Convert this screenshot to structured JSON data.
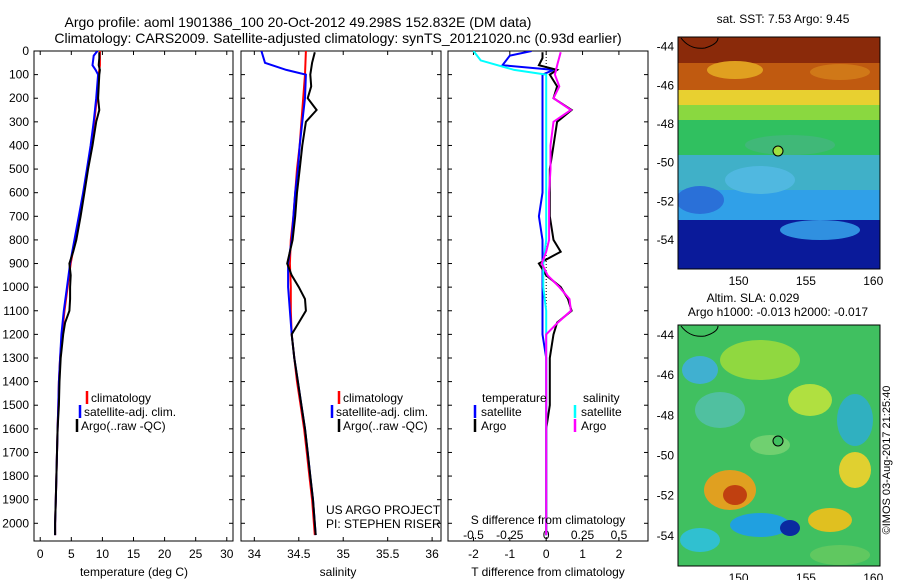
{
  "header": {
    "line1": "Argo profile: aoml 1901386_100 20-Oct-2012 49.298S 152.832E (DM data)",
    "line2": "Climatology: CARS2009. Satellite-adjusted climatology: synTS_20121020.nc (0.93d earlier)"
  },
  "credit": "©IMOS 03-Aug-2017 21:25:40",
  "colors": {
    "climatology": "#ff0000",
    "satellite": "#0000ff",
    "argo": "#000000",
    "salinity_satellite": "#00ffff",
    "salinity_argo": "#ff00ff"
  },
  "chart_data": [
    {
      "type": "line",
      "xlabel": "temperature (deg C)",
      "ylabel": "",
      "xlim": [
        -1,
        31
      ],
      "ylim": [
        2075,
        0
      ],
      "xticks": [
        "0",
        "5",
        "10",
        "15",
        "20",
        "25",
        "30"
      ],
      "yticks": [
        "0",
        "100",
        "200",
        "300",
        "400",
        "500",
        "600",
        "700",
        "800",
        "900",
        "1000",
        "1100",
        "1200",
        "1300",
        "1400",
        "1500",
        "1600",
        "1700",
        "1800",
        "1900",
        "2000"
      ],
      "legend": [
        "climatology",
        "satellite-adj. clim.",
        "Argo(..raw -QC)"
      ],
      "series": [
        {
          "name": "climatology",
          "depth": [
            0,
            60,
            100,
            200,
            300,
            400,
            500,
            600,
            700,
            800,
            900,
            1000,
            1100,
            1200,
            1300,
            1400,
            1500,
            1600,
            1700,
            1800,
            1900,
            2000,
            2050
          ],
          "values": [
            9.6,
            9.6,
            9.4,
            9.1,
            8.7,
            8.2,
            7.6,
            7.0,
            6.4,
            5.6,
            4.9,
            4.4,
            3.9,
            3.5,
            3.2,
            3.0,
            2.9,
            2.8,
            2.7,
            2.6,
            2.5,
            2.4,
            2.4
          ]
        },
        {
          "name": "satellite-adj. clim.",
          "depth": [
            0,
            20,
            60,
            80,
            100,
            200,
            300,
            400,
            500,
            600,
            700,
            800,
            900,
            1000,
            1100,
            1200,
            1300,
            1400,
            1500,
            1600,
            1700,
            1800,
            1900,
            2000,
            2050
          ],
          "values": [
            9.2,
            8.6,
            8.4,
            8.9,
            9.3,
            9.0,
            8.6,
            8.1,
            7.5,
            6.9,
            6.2,
            5.5,
            4.8,
            4.3,
            3.8,
            3.4,
            3.2,
            3.0,
            2.9,
            2.8,
            2.7,
            2.6,
            2.5,
            2.4,
            2.4
          ]
        },
        {
          "name": "Argo(..raw -QC)",
          "depth": [
            5,
            30,
            60,
            80,
            100,
            150,
            200,
            250,
            300,
            400,
            500,
            600,
            700,
            800,
            850,
            900,
            950,
            1000,
            1050,
            1100,
            1150,
            1200,
            1300,
            1400,
            1500,
            1600,
            1700,
            1800,
            1900,
            2000,
            2050
          ],
          "values": [
            9.5,
            9.5,
            9.4,
            9.6,
            9.5,
            9.4,
            9.3,
            9.5,
            9.0,
            8.4,
            7.7,
            7.1,
            6.5,
            5.8,
            5.3,
            4.7,
            4.9,
            4.8,
            4.8,
            4.7,
            4.0,
            3.7,
            3.3,
            3.1,
            3.0,
            2.8,
            2.7,
            2.6,
            2.5,
            2.4,
            2.4
          ]
        }
      ]
    },
    {
      "type": "line",
      "xlabel": "salinity",
      "ylabel": "",
      "xlim": [
        33.85,
        36.1
      ],
      "ylim": [
        2075,
        0
      ],
      "xticks": [
        "34",
        "34.5",
        "35",
        "35.5",
        "36"
      ],
      "legend": [
        "climatology",
        "satellite-adj. clim.",
        "Argo(..raw -QC)"
      ],
      "series": [
        {
          "name": "climatology",
          "depth": [
            0,
            100,
            200,
            300,
            400,
            500,
            600,
            700,
            800,
            900,
            1000,
            1100,
            1200,
            1300,
            1400,
            1500,
            1600,
            1700,
            1800,
            1900,
            2000,
            2050
          ],
          "values": [
            34.58,
            34.57,
            34.55,
            34.53,
            34.51,
            34.48,
            34.46,
            34.44,
            34.41,
            34.4,
            34.41,
            34.41,
            34.42,
            34.45,
            34.48,
            34.52,
            34.56,
            34.59,
            34.62,
            34.65,
            34.67,
            34.68
          ]
        },
        {
          "name": "satellite-adj. clim.",
          "depth": [
            0,
            50,
            80,
            100,
            200,
            300,
            400,
            500,
            600,
            700,
            800,
            900,
            1000,
            1100,
            1200,
            1300,
            1400,
            1500,
            1600,
            1700,
            1800,
            1900,
            2000,
            2050
          ],
          "values": [
            34.08,
            34.12,
            34.36,
            34.58,
            34.57,
            34.54,
            34.51,
            34.49,
            34.46,
            34.44,
            34.42,
            34.38,
            34.38,
            34.4,
            34.42,
            34.45,
            34.49,
            34.53,
            34.57,
            34.6,
            34.63,
            34.66,
            34.68,
            34.69
          ]
        },
        {
          "name": "Argo(..raw -QC)",
          "depth": [
            5,
            50,
            100,
            150,
            200,
            250,
            300,
            400,
            500,
            600,
            700,
            800,
            850,
            900,
            950,
            1000,
            1050,
            1100,
            1150,
            1200,
            1300,
            1400,
            1500,
            1600,
            1700,
            1800,
            1900,
            2000,
            2050
          ],
          "values": [
            34.68,
            34.65,
            34.63,
            34.64,
            34.6,
            34.7,
            34.58,
            34.54,
            34.51,
            34.48,
            34.46,
            34.43,
            34.4,
            34.37,
            34.42,
            34.5,
            34.57,
            34.58,
            34.5,
            34.42,
            34.45,
            34.49,
            34.53,
            34.57,
            34.6,
            34.63,
            34.66,
            34.68,
            34.69
          ]
        }
      ]
    },
    {
      "type": "line",
      "xlabel": "T difference from climatology",
      "x2label": "S difference from climatology",
      "xlim": [
        -2.7,
        2.8
      ],
      "x2lim": [
        -0.675,
        0.7
      ],
      "ylim": [
        2075,
        0
      ],
      "xticks": [
        "-2",
        "-1",
        "0",
        "1",
        "2"
      ],
      "x2ticks": [
        "-0.5",
        "-0.25",
        "0",
        "0.25",
        "0.5"
      ],
      "legend_titles": [
        "temperature",
        "salinity"
      ],
      "legend": [
        "satellite",
        "Argo",
        "satellite",
        "Argo"
      ],
      "series": [
        {
          "name": "satellite",
          "variable": "temperature",
          "depth": [
            0,
            20,
            60,
            80,
            100,
            150,
            200,
            300,
            400,
            500,
            600,
            700,
            800,
            900,
            1000,
            1100,
            1200,
            1300,
            1400,
            1500,
            1600,
            1700,
            1800,
            1900,
            2000,
            2050
          ],
          "values": [
            -0.4,
            -1.0,
            -1.2,
            0.2,
            -0.1,
            -0.1,
            -0.1,
            -0.1,
            -0.1,
            -0.1,
            -0.1,
            -0.2,
            -0.1,
            -0.1,
            -0.1,
            -0.1,
            -0.1,
            0,
            0,
            0,
            0,
            0,
            0,
            0,
            0,
            0
          ]
        },
        {
          "name": "Argo",
          "variable": "temperature",
          "depth": [
            5,
            30,
            60,
            80,
            100,
            150,
            200,
            250,
            300,
            400,
            500,
            600,
            700,
            800,
            850,
            900,
            950,
            1000,
            1050,
            1100,
            1150,
            1200,
            1300,
            1400,
            1500,
            1600,
            1700,
            1800,
            1900,
            2000,
            2050
          ],
          "values": [
            -0.1,
            -0.1,
            -0.2,
            0.3,
            0.1,
            0.3,
            0.2,
            0.7,
            0.3,
            0.2,
            0.1,
            0.1,
            0.1,
            0.2,
            0.4,
            -0.2,
            0,
            0.4,
            0.6,
            0.7,
            0.3,
            0.2,
            0.1,
            0.1,
            0.1,
            0,
            0,
            0,
            0,
            0,
            0
          ]
        },
        {
          "name": "satellite",
          "variable": "salinity",
          "depth": [
            0,
            40,
            80,
            100,
            200,
            300,
            400,
            500,
            600,
            700,
            800,
            900,
            1000,
            1100,
            1200,
            1300,
            1400,
            1500,
            1600,
            1700,
            1800,
            1900,
            2000,
            2050
          ],
          "values": [
            -0.5,
            -0.45,
            -0.22,
            0,
            0,
            0,
            0,
            0,
            0,
            0,
            0,
            -0.02,
            -0.02,
            0,
            0,
            0,
            0,
            0,
            0,
            0,
            0,
            0,
            0,
            0
          ]
        },
        {
          "name": "Argo",
          "variable": "salinity",
          "depth": [
            5,
            50,
            100,
            150,
            200,
            250,
            300,
            400,
            500,
            600,
            700,
            800,
            850,
            900,
            950,
            1000,
            1050,
            1100,
            1150,
            1200,
            1300,
            1400,
            1500,
            1600,
            1700,
            1800,
            1900,
            2000,
            2050
          ],
          "values": [
            0.1,
            0.08,
            0.06,
            0.09,
            0.05,
            0.17,
            0.05,
            0.03,
            0.03,
            0.02,
            0.02,
            0.02,
            0,
            -0.03,
            0.01,
            0.09,
            0.16,
            0.17,
            0.08,
            0,
            0,
            0,
            0,
            0,
            0,
            0,
            0,
            0,
            0
          ]
        }
      ]
    },
    {
      "type": "heatmap",
      "title": "sat. SST: 7.53  Argo: 9.45",
      "xlim": [
        145.5,
        160.5
      ],
      "ylim": [
        -55.5,
        -43.5
      ],
      "xticks": [
        "150",
        "155",
        "160"
      ],
      "yticks": [
        "-44",
        "-46",
        "-48",
        "-50",
        "-52",
        "-54"
      ],
      "marker": {
        "lon": 152.832,
        "lat": -49.298
      }
    },
    {
      "type": "heatmap",
      "title": "Altim. SLA: 0.029",
      "subtitle": "Argo h1000: -0.013 h2000: -0.017",
      "xlim": [
        145.5,
        160.5
      ],
      "ylim": [
        -55.5,
        -43.5
      ],
      "xticks": [
        "150",
        "155",
        "160"
      ],
      "yticks": [
        "-44",
        "-46",
        "-48",
        "-50",
        "-52",
        "-54"
      ],
      "marker": {
        "lon": 152.832,
        "lat": -49.298
      }
    }
  ],
  "panel_notes": {
    "project": "US ARGO PROJECT",
    "pi": "PI: STEPHEN RISER"
  }
}
